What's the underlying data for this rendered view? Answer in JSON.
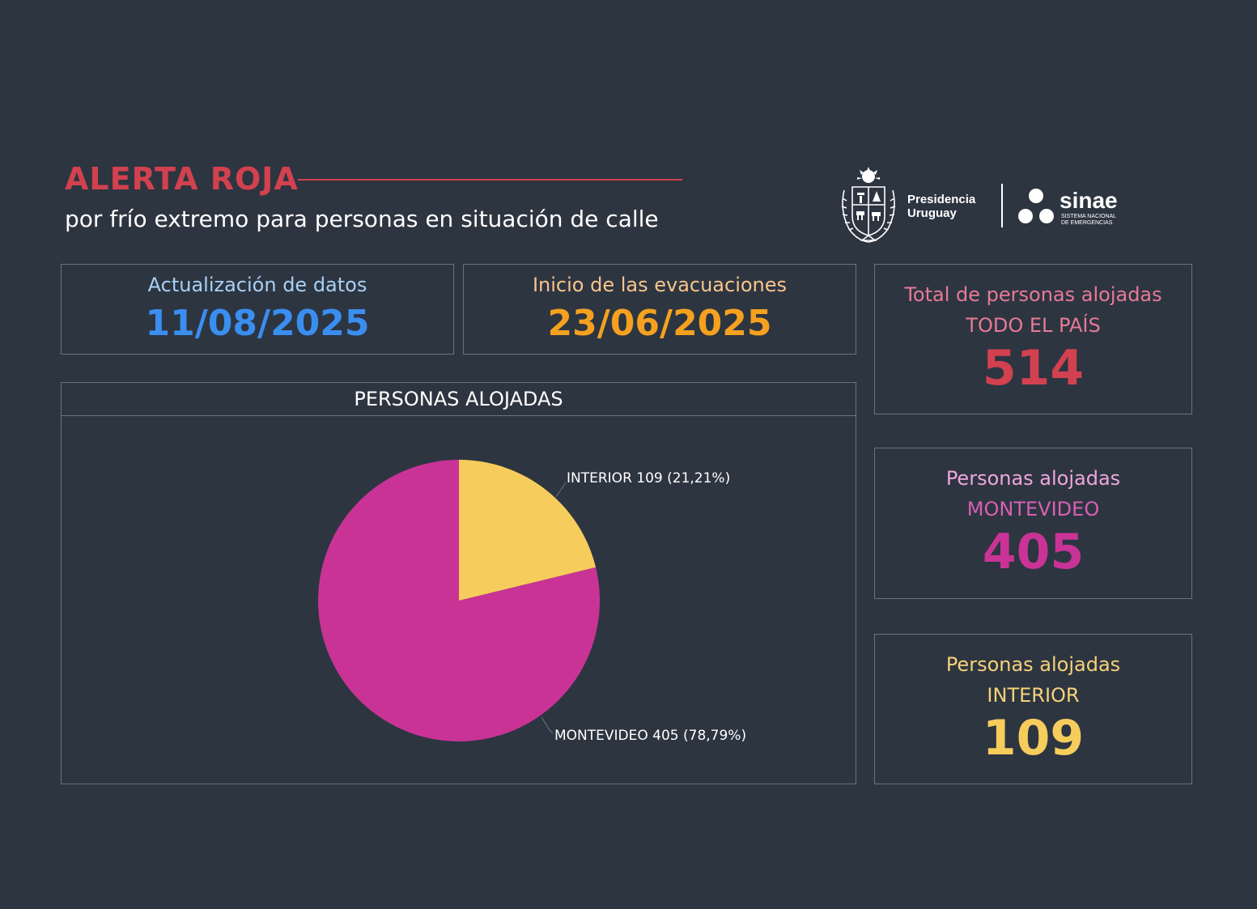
{
  "header": {
    "title": "ALERTA ROJA",
    "subtitle": "por frío extremo para personas en situación de calle"
  },
  "logos": {
    "presidencia_line1": "Presidencia",
    "presidencia_line2": "Uruguay",
    "sinae": "sinae",
    "sinae_line1": "SISTEMA NACIONAL",
    "sinae_line2": "DE EMERGENCIAS"
  },
  "cards": {
    "update": {
      "label": "Actualización de datos",
      "value": "11/08/2025"
    },
    "start": {
      "label": "Inicio de las evacuaciones",
      "value": "23/06/2025"
    },
    "total": {
      "label": "Total de personas alojadas",
      "sublabel": "TODO EL PAÍS",
      "value": "514"
    },
    "montevideo": {
      "label": "Personas alojadas",
      "sublabel": "MONTEVIDEO",
      "value": "405"
    },
    "interior": {
      "label": "Personas alojadas",
      "sublabel": "INTERIOR",
      "value": "109"
    }
  },
  "colors": {
    "background": "#2d3541",
    "red": "#d2414f",
    "blue": "#3a8ef0",
    "orange": "#f5a11f",
    "magenta": "#c93396",
    "yellow": "#f6cd5c",
    "light_blue": "#a9d0f5",
    "peach": "#f8c58a",
    "pink": "#e77a96",
    "light_pink": "#efa6dd",
    "light_yellow": "#f6d279"
  },
  "chart_data": {
    "type": "pie",
    "title": "PERSONAS ALOJADAS",
    "slices": [
      {
        "name": "INTERIOR",
        "value": 109,
        "percent": "21,21%",
        "label": "INTERIOR 109 (21,21%)",
        "color": "#f6cd5c"
      },
      {
        "name": "MONTEVIDEO",
        "value": 405,
        "percent": "78,79%",
        "label": "MONTEVIDEO 405 (78,79%)",
        "color": "#c93396"
      }
    ]
  }
}
